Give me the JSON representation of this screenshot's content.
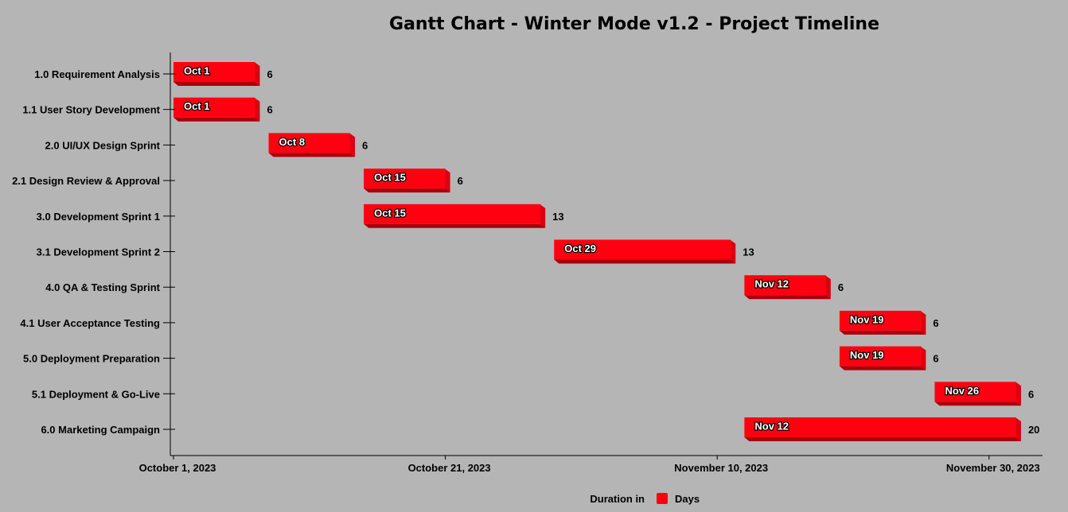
{
  "chart_data": {
    "type": "bar",
    "title": "Gantt Chart - Winter Mode v1.2 -  Project Timeline",
    "x_axis_start": "2023-10-01",
    "x_axis_ticks": [
      "October 1, 2023",
      "October 21, 2023",
      "November 10, 2023",
      "November 30, 2023"
    ],
    "x_axis_tick_dates": [
      "2023-10-01",
      "2023-10-21",
      "2023-11-10",
      "2023-11-30"
    ],
    "grid": false,
    "legend": {
      "placement": "bottom-center",
      "title": "Duration in",
      "entries": [
        {
          "name": "Days",
          "color": "#ff0011"
        }
      ]
    },
    "colors": {
      "bar": "#ff0011",
      "bar_shadow": "#a8000c",
      "bar_side": "#d9000f",
      "background": "#b5b5b5"
    },
    "tasks": [
      {
        "name": "1.0 Requirement Analysis",
        "start": "2023-10-01",
        "start_label": "Oct 1",
        "duration": 6
      },
      {
        "name": "1.1 User Story Development",
        "start": "2023-10-01",
        "start_label": "Oct 1",
        "duration": 6
      },
      {
        "name": "2.0 UI/UX Design Sprint",
        "start": "2023-10-08",
        "start_label": "Oct 8",
        "duration": 6
      },
      {
        "name": "2.1 Design Review & Approval",
        "start": "2023-10-15",
        "start_label": "Oct 15",
        "duration": 6
      },
      {
        "name": "3.0 Development Sprint 1",
        "start": "2023-10-15",
        "start_label": "Oct 15",
        "duration": 13
      },
      {
        "name": "3.1 Development Sprint 2",
        "start": "2023-10-29",
        "start_label": "Oct 29",
        "duration": 13
      },
      {
        "name": "4.0 QA & Testing Sprint",
        "start": "2023-11-12",
        "start_label": "Nov 12",
        "duration": 6
      },
      {
        "name": "4.1 User Acceptance Testing",
        "start": "2023-11-19",
        "start_label": "Nov 19",
        "duration": 6
      },
      {
        "name": "5.0 Deployment Preparation",
        "start": "2023-11-19",
        "start_label": "Nov 19",
        "duration": 6
      },
      {
        "name": "5.1 Deployment & Go-Live",
        "start": "2023-11-26",
        "start_label": "Nov 26",
        "duration": 6
      },
      {
        "name": "6.0 Marketing Campaign",
        "start": "2023-11-12",
        "start_label": "Nov 12",
        "duration": 20
      }
    ]
  }
}
